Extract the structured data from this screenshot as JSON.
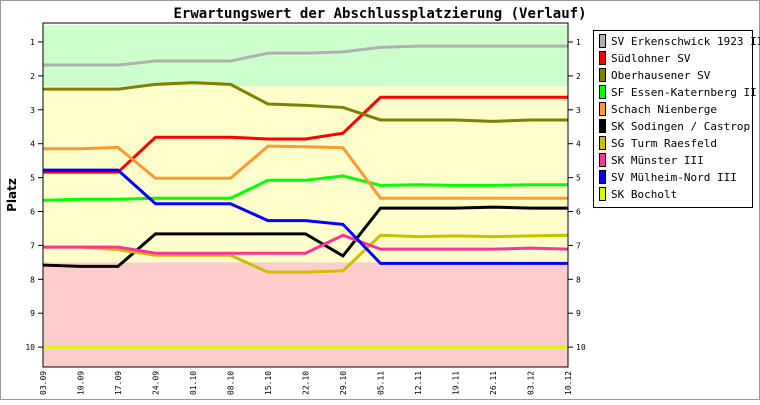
{
  "chart_data": {
    "type": "line",
    "title": "Erwartungswert der Abschlussplatzierung (Verlauf)",
    "xlabel": "",
    "ylabel": "Platz",
    "ylim": [
      1,
      10
    ],
    "y_inverted": true,
    "yticks": [
      "1",
      "2",
      "3",
      "4",
      "5",
      "6",
      "7",
      "8",
      "9",
      "10"
    ],
    "categories": [
      "03.09",
      "10.09",
      "17.09",
      "24.09",
      "01.10",
      "08.10",
      "15.10",
      "22.10",
      "29.10",
      "05.11",
      "12.11",
      "19.11",
      "26.11",
      "03.12",
      "10.12"
    ],
    "zones": [
      {
        "from": 0.5,
        "to": 2.3,
        "color": "#ccffcc"
      },
      {
        "from": 2.3,
        "to": 7.5,
        "color": "#ffffcc"
      },
      {
        "from": 7.5,
        "to": 10.6,
        "color": "#ffcccc"
      }
    ],
    "legend_position": "right",
    "series": [
      {
        "name": "SV Erkenschwick 1923 II",
        "color": "#b0b0b0",
        "values": [
          1.68,
          1.68,
          1.68,
          1.56,
          1.56,
          1.56,
          1.33,
          1.33,
          1.29,
          1.16,
          1.12,
          1.12,
          1.12,
          1.12,
          1.12
        ]
      },
      {
        "name": "Südlohner SV",
        "color": "#ff0000",
        "values": [
          4.84,
          4.84,
          4.84,
          3.81,
          3.81,
          3.81,
          3.86,
          3.86,
          3.69,
          2.63,
          2.63,
          2.63,
          2.63,
          2.63,
          2.63
        ]
      },
      {
        "name": "Oberhausener SV",
        "color": "#808000",
        "values": [
          2.39,
          2.39,
          2.39,
          2.25,
          2.2,
          2.25,
          2.83,
          2.87,
          2.93,
          3.3,
          3.3,
          3.3,
          3.34,
          3.3,
          3.3
        ]
      },
      {
        "name": "SF Essen-Katernberg II",
        "color": "#00ff00",
        "values": [
          5.67,
          5.64,
          5.64,
          5.61,
          5.61,
          5.61,
          5.08,
          5.08,
          4.95,
          5.23,
          5.21,
          5.23,
          5.23,
          5.21,
          5.21
        ]
      },
      {
        "name": "Schach Nienberge",
        "color": "#ff9933",
        "values": [
          4.15,
          4.15,
          4.11,
          5.02,
          5.02,
          5.02,
          4.07,
          4.09,
          4.12,
          5.61,
          5.61,
          5.61,
          5.61,
          5.61,
          5.61
        ]
      },
      {
        "name": "SK Sodingen / Castrop",
        "color": "#000000",
        "values": [
          7.58,
          7.62,
          7.62,
          6.66,
          6.66,
          6.66,
          6.66,
          6.66,
          7.31,
          5.9,
          5.9,
          5.9,
          5.87,
          5.9,
          5.9
        ]
      },
      {
        "name": "SG Turm Raesfeld",
        "color": "#c8c000",
        "values": [
          7.05,
          7.05,
          7.13,
          7.29,
          7.29,
          7.29,
          7.79,
          7.79,
          7.75,
          6.7,
          6.74,
          6.72,
          6.74,
          6.72,
          6.7
        ]
      },
      {
        "name": "SK Münster III",
        "color": "#ff3399",
        "values": [
          7.05,
          7.05,
          7.05,
          7.23,
          7.23,
          7.23,
          7.23,
          7.23,
          6.7,
          7.11,
          7.11,
          7.11,
          7.11,
          7.08,
          7.11
        ]
      },
      {
        "name": "SV Mülheim-Nord III",
        "color": "#0000ff",
        "values": [
          4.78,
          4.78,
          4.78,
          5.77,
          5.77,
          5.77,
          6.27,
          6.27,
          6.38,
          7.53,
          7.53,
          7.53,
          7.53,
          7.53,
          7.53
        ]
      },
      {
        "name": "SK Bocholt",
        "color": "#ccff00",
        "values": [
          10,
          10,
          10,
          10,
          10,
          10,
          10,
          10,
          10,
          10,
          10,
          10,
          10,
          10,
          10
        ]
      }
    ]
  }
}
